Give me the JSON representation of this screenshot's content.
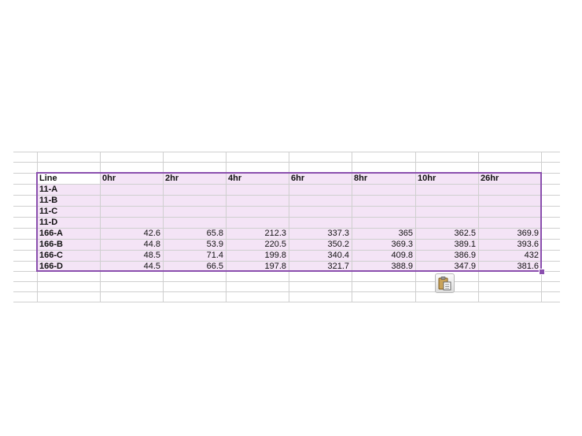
{
  "table": {
    "headers": [
      "Line",
      "0hr",
      "2hr",
      "4hr",
      "6hr",
      "8hr",
      "10hr",
      "26hr"
    ],
    "rows": [
      {
        "label": "11-A",
        "values": [
          "",
          "",
          "",
          "",
          "",
          "",
          ""
        ]
      },
      {
        "label": "11-B",
        "values": [
          "",
          "",
          "",
          "",
          "",
          "",
          ""
        ]
      },
      {
        "label": "11-C",
        "values": [
          "",
          "",
          "",
          "",
          "",
          "",
          ""
        ]
      },
      {
        "label": "11-D",
        "values": [
          "",
          "",
          "",
          "",
          "",
          "",
          ""
        ]
      },
      {
        "label": "166-A",
        "values": [
          "42.6",
          "65.8",
          "212.3",
          "337.3",
          "365",
          "362.5",
          "369.9"
        ]
      },
      {
        "label": "166-B",
        "values": [
          "44.8",
          "53.9",
          "220.5",
          "350.2",
          "369.3",
          "389.1",
          "393.6"
        ]
      },
      {
        "label": "166-C",
        "values": [
          "48.5",
          "71.4",
          "199.8",
          "340.4",
          "409.8",
          "386.9",
          "432"
        ]
      },
      {
        "label": "166-D",
        "values": [
          "44.5",
          "66.5",
          "197.8",
          "321.7",
          "388.9",
          "347.9",
          "381.6"
        ]
      }
    ]
  },
  "paste_options": {
    "icon": "clipboard-paste-icon"
  },
  "colors": {
    "selection_fill": "#f4e4f6",
    "selection_border": "#8a4fae",
    "gridline": "#cfcfcf"
  }
}
